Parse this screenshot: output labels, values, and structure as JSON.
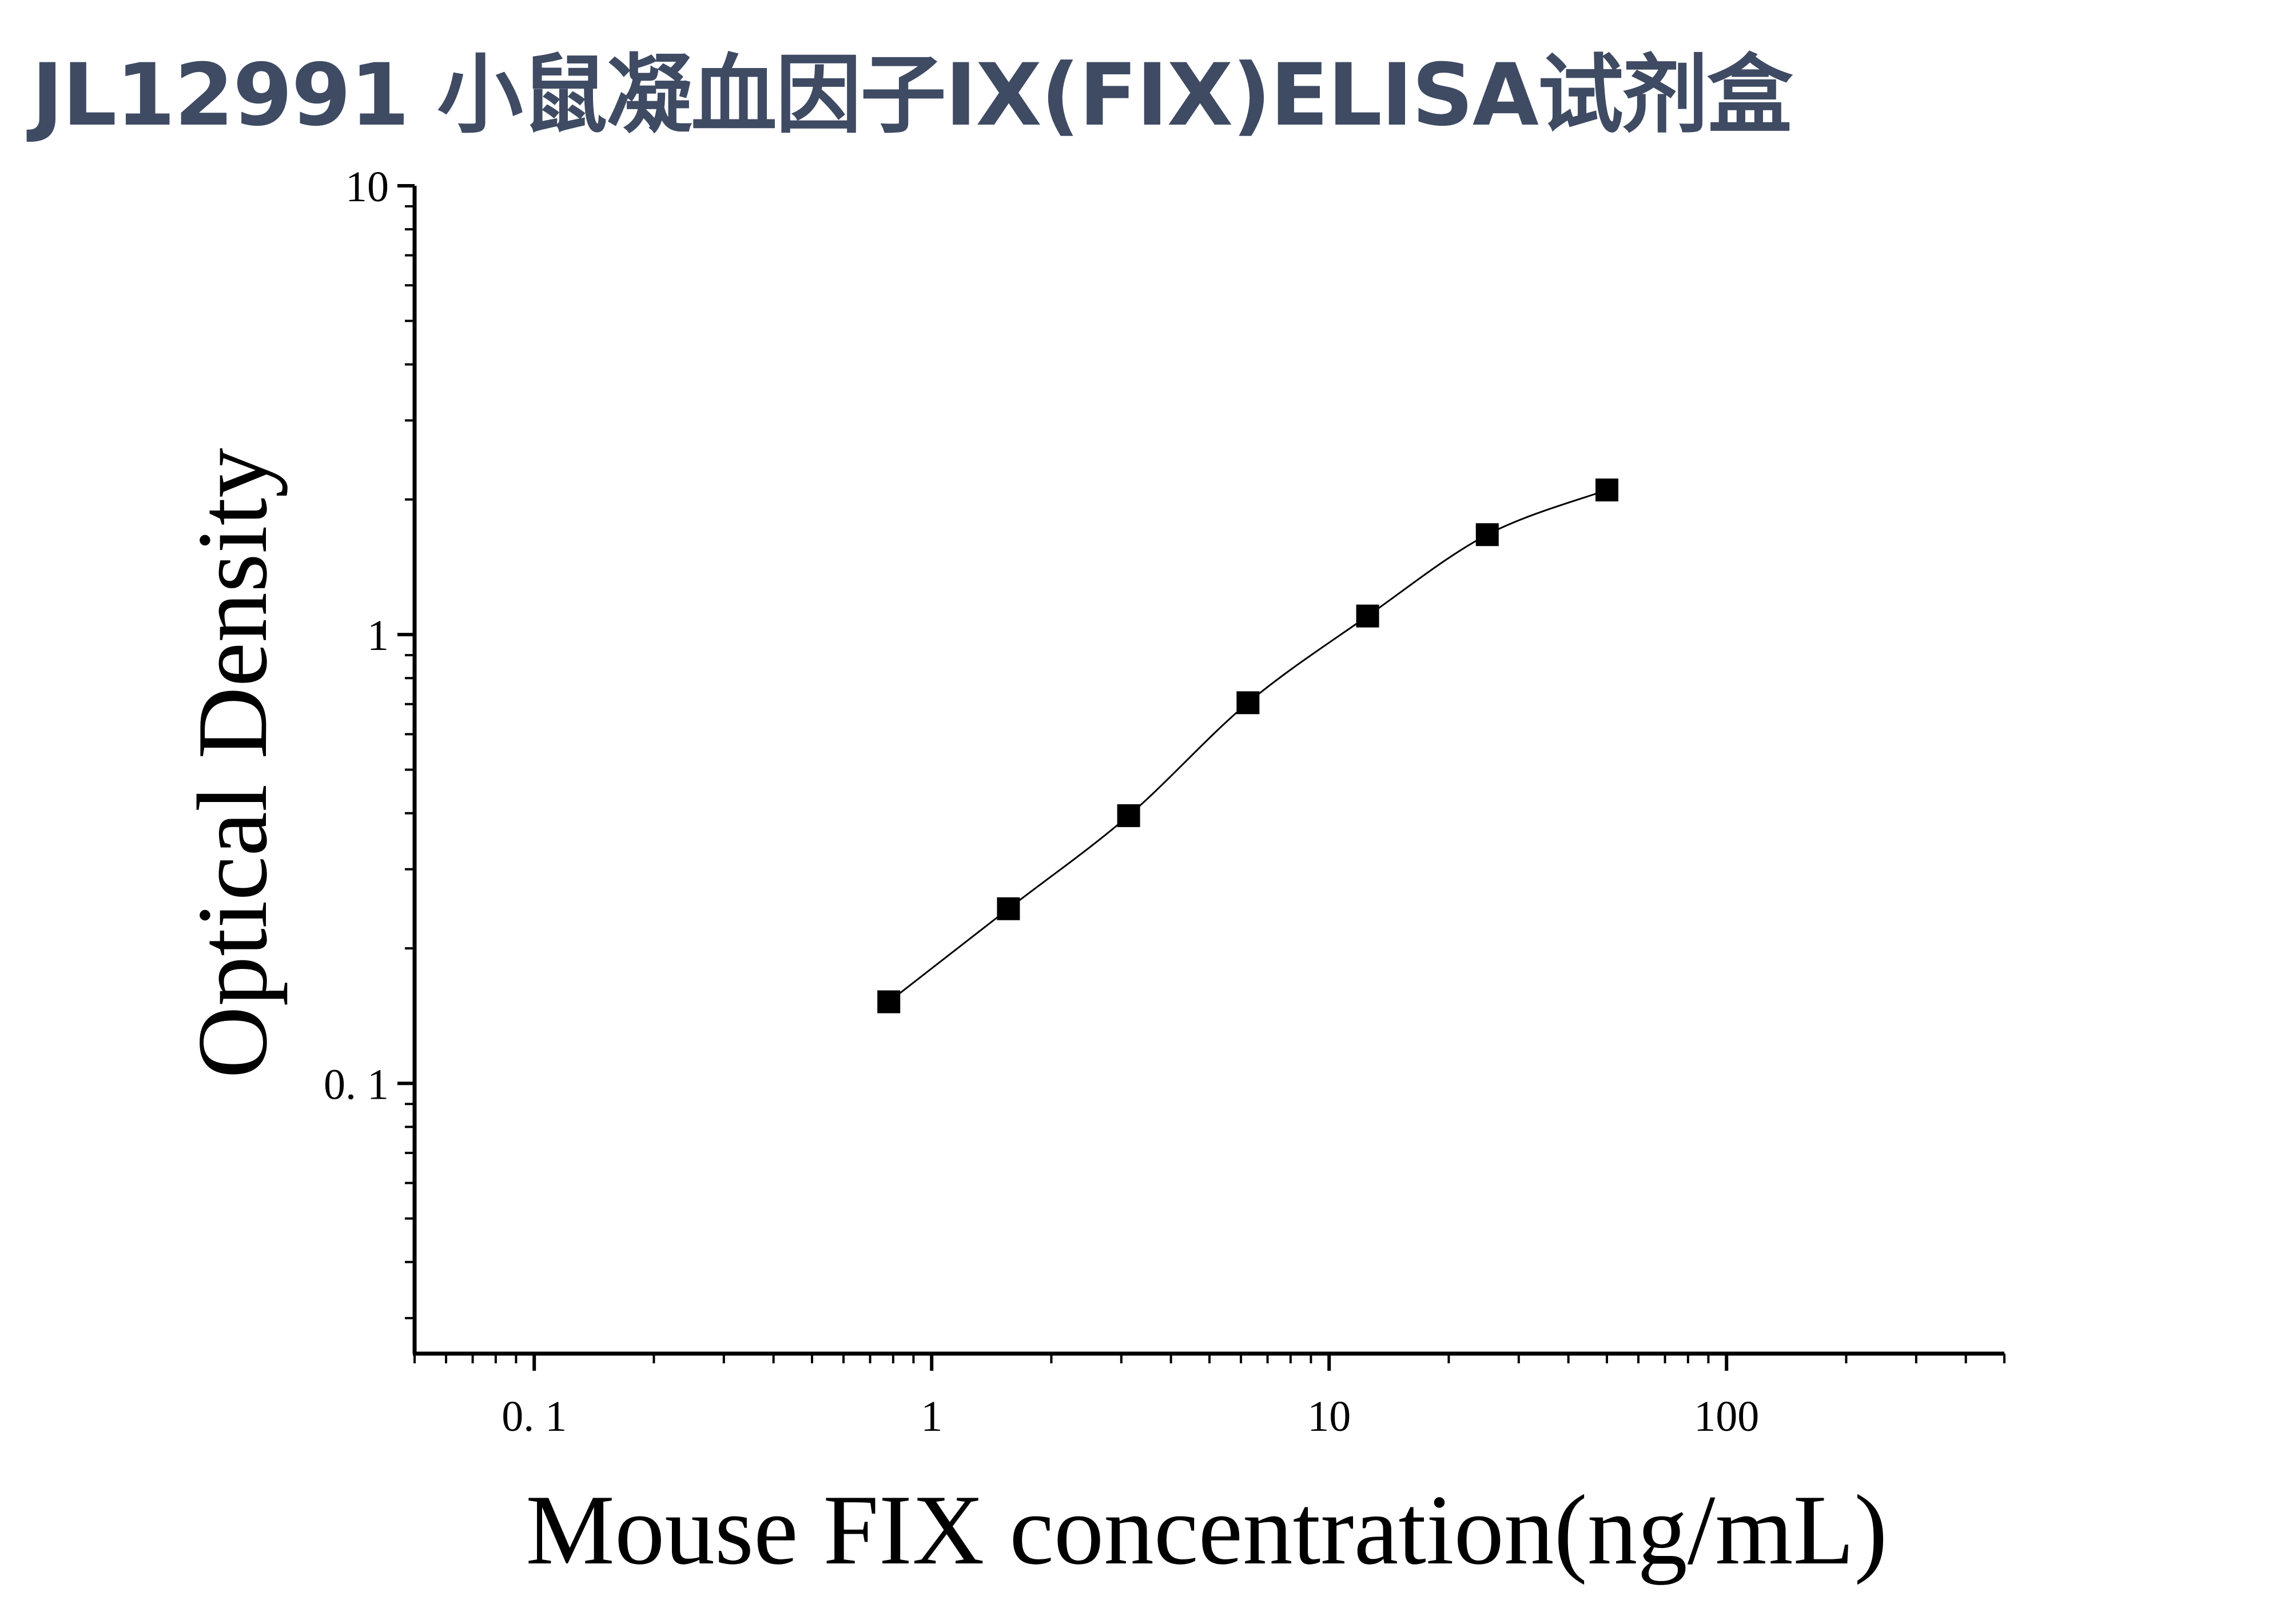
{
  "title": "JL12991 小鼠凝血因子IX(FIX)ELISA试剂盒",
  "chart_data": {
    "type": "scatter",
    "title": "JL12991 小鼠凝血因子IX(FIX)ELISA试剂盒",
    "xlabel": "Mouse FIX concentration(ng/mL)",
    "ylabel": "Optical Density",
    "x_scale": "log",
    "y_scale": "log",
    "xlim": [
      0.05,
      500
    ],
    "ylim": [
      0.025,
      10
    ],
    "x_ticks": [
      0.1,
      1,
      10,
      100
    ],
    "x_tick_labels": [
      "0. 1",
      "1",
      "10",
      "100"
    ],
    "y_ticks": [
      0.1,
      1,
      10
    ],
    "y_tick_labels": [
      "0. 1",
      "1",
      "10"
    ],
    "grid": false,
    "legend": "none",
    "fit_curve": true,
    "series": [
      {
        "x": [
          0.78,
          1.56,
          3.13,
          6.25,
          12.5,
          25,
          50
        ],
        "y": [
          0.152,
          0.245,
          0.395,
          0.705,
          1.1,
          1.67,
          2.1
        ],
        "color": "#000000",
        "marker": "square"
      }
    ]
  }
}
